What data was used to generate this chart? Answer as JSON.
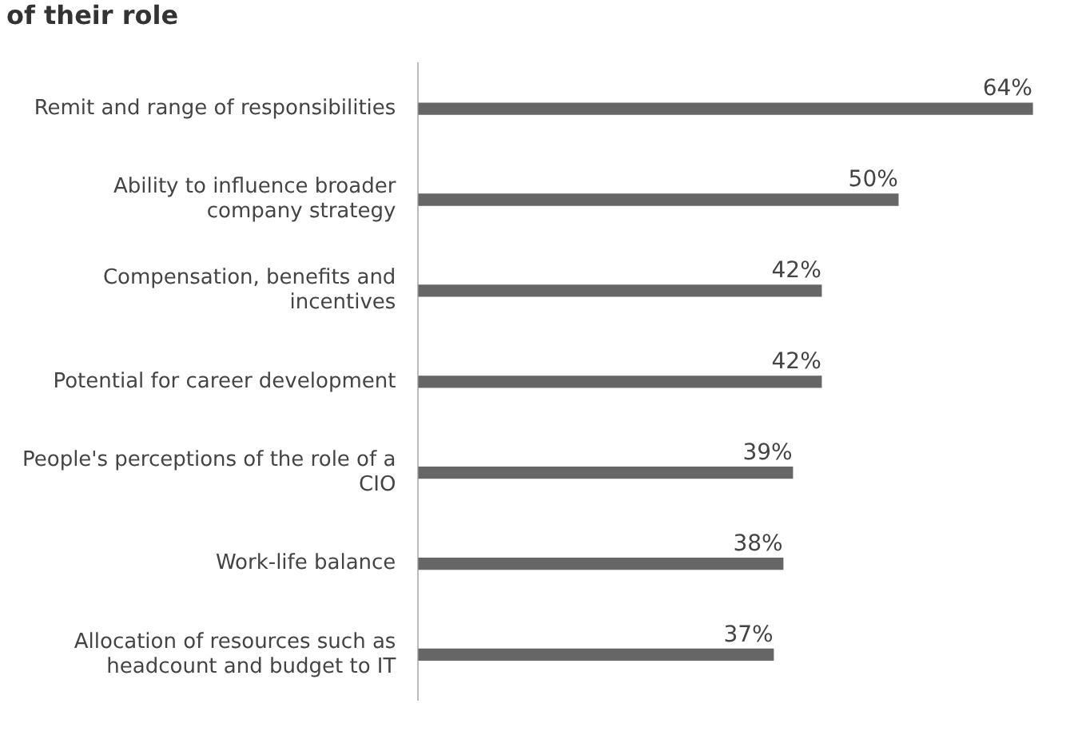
{
  "chart_data": {
    "type": "bar",
    "orientation": "horizontal",
    "title": "of their role",
    "categories": [
      "Remit and range of responsibilities",
      "Ability to influence broader company strategy",
      "Compensation, benefits and incentives",
      "Potential for career development",
      "People's perceptions of the role of a CIO",
      "Work-life balance",
      "Allocation of resources such as headcount and budget to IT"
    ],
    "values": [
      64,
      50,
      42,
      42,
      39,
      38,
      37
    ],
    "value_labels": [
      "64%",
      "50%",
      "42%",
      "42%",
      "39%",
      "38%",
      "37%"
    ],
    "color": "#666666"
  }
}
